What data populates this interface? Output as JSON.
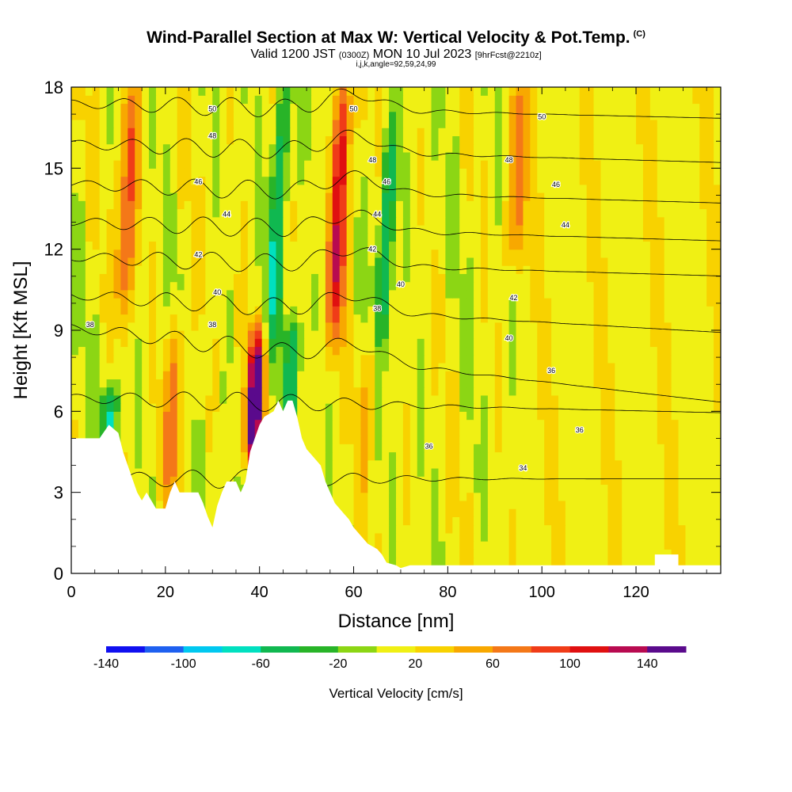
{
  "chart_data": {
    "type": "heatmap",
    "title": "Wind-Parallel Section at Max W: Vertical Velocity & Pot.Temp.",
    "title_mark": "(C)",
    "subtitle_main": "Valid 1200 JST",
    "subtitle_zulu": "(0300Z)",
    "subtitle_date": "MON 10 Jul 2023",
    "subtitle_fcst": "[9hrFcst@2210z]",
    "subtitle2": "i,j,k,angle=92,59,24,99",
    "xlabel": "Distance [nm]",
    "ylabel": "Height [Kft MSL]",
    "xlim": [
      0,
      138
    ],
    "ylim": [
      0,
      18
    ],
    "x_ticks": [
      "0",
      "20",
      "40",
      "60",
      "80",
      "100",
      "120"
    ],
    "y_ticks": [
      "0",
      "3",
      "6",
      "9",
      "12",
      "15",
      "18"
    ],
    "colorbar": {
      "label": "Vertical Velocity [cm/s]",
      "tick_labels": [
        "-140",
        "-100",
        "-60",
        "-20",
        "20",
        "60",
        "100",
        "140"
      ],
      "colors": [
        "#1010f0",
        "#1e60f0",
        "#00c8f0",
        "#00e0c0",
        "#10b850",
        "#28b428",
        "#8cd614",
        "#f0f014",
        "#f8d200",
        "#f8a800",
        "#f47818",
        "#f03c18",
        "#e01010",
        "#b80a50",
        "#5a0a8c"
      ]
    },
    "updraft_cores": [
      {
        "x": 12,
        "bottom": 10,
        "top": 18,
        "w": 80
      },
      {
        "x": 22,
        "bottom": 3.5,
        "top": 9,
        "w": 60
      },
      {
        "x": 39,
        "bottom": 4.5,
        "top": 8.5,
        "w": 140
      },
      {
        "x": 57,
        "bottom": 9,
        "top": 18,
        "w": 110
      },
      {
        "x": 63,
        "bottom": 4,
        "top": 9,
        "w": 30
      },
      {
        "x": 95,
        "bottom": 12,
        "top": 18,
        "w": 60
      }
    ],
    "downdraft_cores": [
      {
        "x": 8,
        "bottom": 4.5,
        "top": 6.5,
        "w": -70
      },
      {
        "x": 44,
        "bottom": 9,
        "top": 18,
        "w": -70
      },
      {
        "x": 47,
        "bottom": 6,
        "top": 9,
        "w": -60
      },
      {
        "x": 67,
        "bottom": 9,
        "top": 16,
        "w": -70
      }
    ],
    "isentropes": [
      {
        "label": "34",
        "y0": 3.5,
        "slope": 0.0
      },
      {
        "label": "36",
        "y0": 6.5,
        "slope": -0.004
      },
      {
        "label": "38",
        "y0": 9.1,
        "slope": -0.02
      },
      {
        "label": "40",
        "y0": 10.3,
        "slope": -0.01
      },
      {
        "label": "42",
        "y0": 11.7,
        "slope": -0.005
      },
      {
        "label": "44",
        "y0": 13.0,
        "slope": -0.005
      },
      {
        "label": "46",
        "y0": 14.4,
        "slope": -0.005
      },
      {
        "label": "48",
        "y0": 15.9,
        "slope": -0.005
      },
      {
        "label": "50",
        "y0": 17.4,
        "slope": -0.004
      }
    ],
    "contour_labels": [
      {
        "text": "38",
        "x": 4,
        "y": 9.2
      },
      {
        "text": "38",
        "x": 30,
        "y": 9.2
      },
      {
        "text": "40",
        "x": 31,
        "y": 10.4
      },
      {
        "text": "42",
        "x": 27,
        "y": 11.8
      },
      {
        "text": "44",
        "x": 33,
        "y": 13.3
      },
      {
        "text": "46",
        "x": 27,
        "y": 14.5
      },
      {
        "text": "48",
        "x": 30,
        "y": 16.2
      },
      {
        "text": "50",
        "x": 30,
        "y": 17.2
      },
      {
        "text": "50",
        "x": 60,
        "y": 17.2
      },
      {
        "text": "48",
        "x": 64,
        "y": 15.3
      },
      {
        "text": "46",
        "x": 67,
        "y": 14.5
      },
      {
        "text": "44",
        "x": 65,
        "y": 13.3
      },
      {
        "text": "42",
        "x": 64,
        "y": 12.0
      },
      {
        "text": "40",
        "x": 70,
        "y": 10.7
      },
      {
        "text": "38",
        "x": 65,
        "y": 9.8
      },
      {
        "text": "36",
        "x": 76,
        "y": 4.7
      },
      {
        "text": "50",
        "x": 100,
        "y": 16.9
      },
      {
        "text": "48",
        "x": 93,
        "y": 15.3
      },
      {
        "text": "46",
        "x": 103,
        "y": 14.4
      },
      {
        "text": "44",
        "x": 105,
        "y": 12.9
      },
      {
        "text": "42",
        "x": 94,
        "y": 10.2
      },
      {
        "text": "40",
        "x": 93,
        "y": 8.7
      },
      {
        "text": "36",
        "x": 102,
        "y": 7.5
      },
      {
        "text": "36",
        "x": 108,
        "y": 5.3
      },
      {
        "text": "34",
        "x": 96,
        "y": 3.9
      }
    ],
    "terrain": [
      [
        0,
        5
      ],
      [
        6,
        5
      ],
      [
        8,
        5.5
      ],
      [
        10,
        5.2
      ],
      [
        11,
        4.5
      ],
      [
        12,
        4.0
      ],
      [
        13,
        3.5
      ],
      [
        14,
        3.0
      ],
      [
        15,
        2.7
      ],
      [
        16,
        3.0
      ],
      [
        17,
        2.7
      ],
      [
        18,
        2.4
      ],
      [
        20,
        2.4
      ],
      [
        21,
        3.0
      ],
      [
        22,
        3.4
      ],
      [
        23,
        3.0
      ],
      [
        24,
        3.0
      ],
      [
        25,
        3.0
      ],
      [
        27,
        3.0
      ],
      [
        28,
        2.6
      ],
      [
        29,
        2.1
      ],
      [
        30,
        1.7
      ],
      [
        31,
        2.5
      ],
      [
        32,
        3.0
      ],
      [
        33,
        3.4
      ],
      [
        35,
        3.4
      ],
      [
        36,
        3.0
      ],
      [
        37,
        3.4
      ],
      [
        38,
        4.5
      ],
      [
        39,
        5.0
      ],
      [
        40,
        5.5
      ],
      [
        41,
        5.8
      ],
      [
        43,
        6.0
      ],
      [
        44,
        6.4
      ],
      [
        45,
        6.0
      ],
      [
        46,
        6.4
      ],
      [
        47,
        6.4
      ],
      [
        48,
        5.8
      ],
      [
        49,
        5.0
      ],
      [
        50,
        4.6
      ],
      [
        51,
        4.4
      ],
      [
        53,
        4.0
      ],
      [
        54,
        3.4
      ],
      [
        55,
        3.0
      ],
      [
        56,
        2.6
      ],
      [
        58,
        2.2
      ],
      [
        59,
        2.0
      ],
      [
        60,
        1.7
      ],
      [
        62,
        1.3
      ],
      [
        63,
        1.1
      ],
      [
        65,
        0.9
      ],
      [
        66,
        0.7
      ],
      [
        67,
        0.4
      ],
      [
        69,
        0.3
      ],
      [
        70,
        0.2
      ],
      [
        72,
        0.3
      ],
      [
        124,
        0.3
      ],
      [
        124,
        0.7
      ],
      [
        129,
        0.7
      ],
      [
        129,
        0.3
      ],
      [
        138,
        0.3
      ]
    ]
  }
}
